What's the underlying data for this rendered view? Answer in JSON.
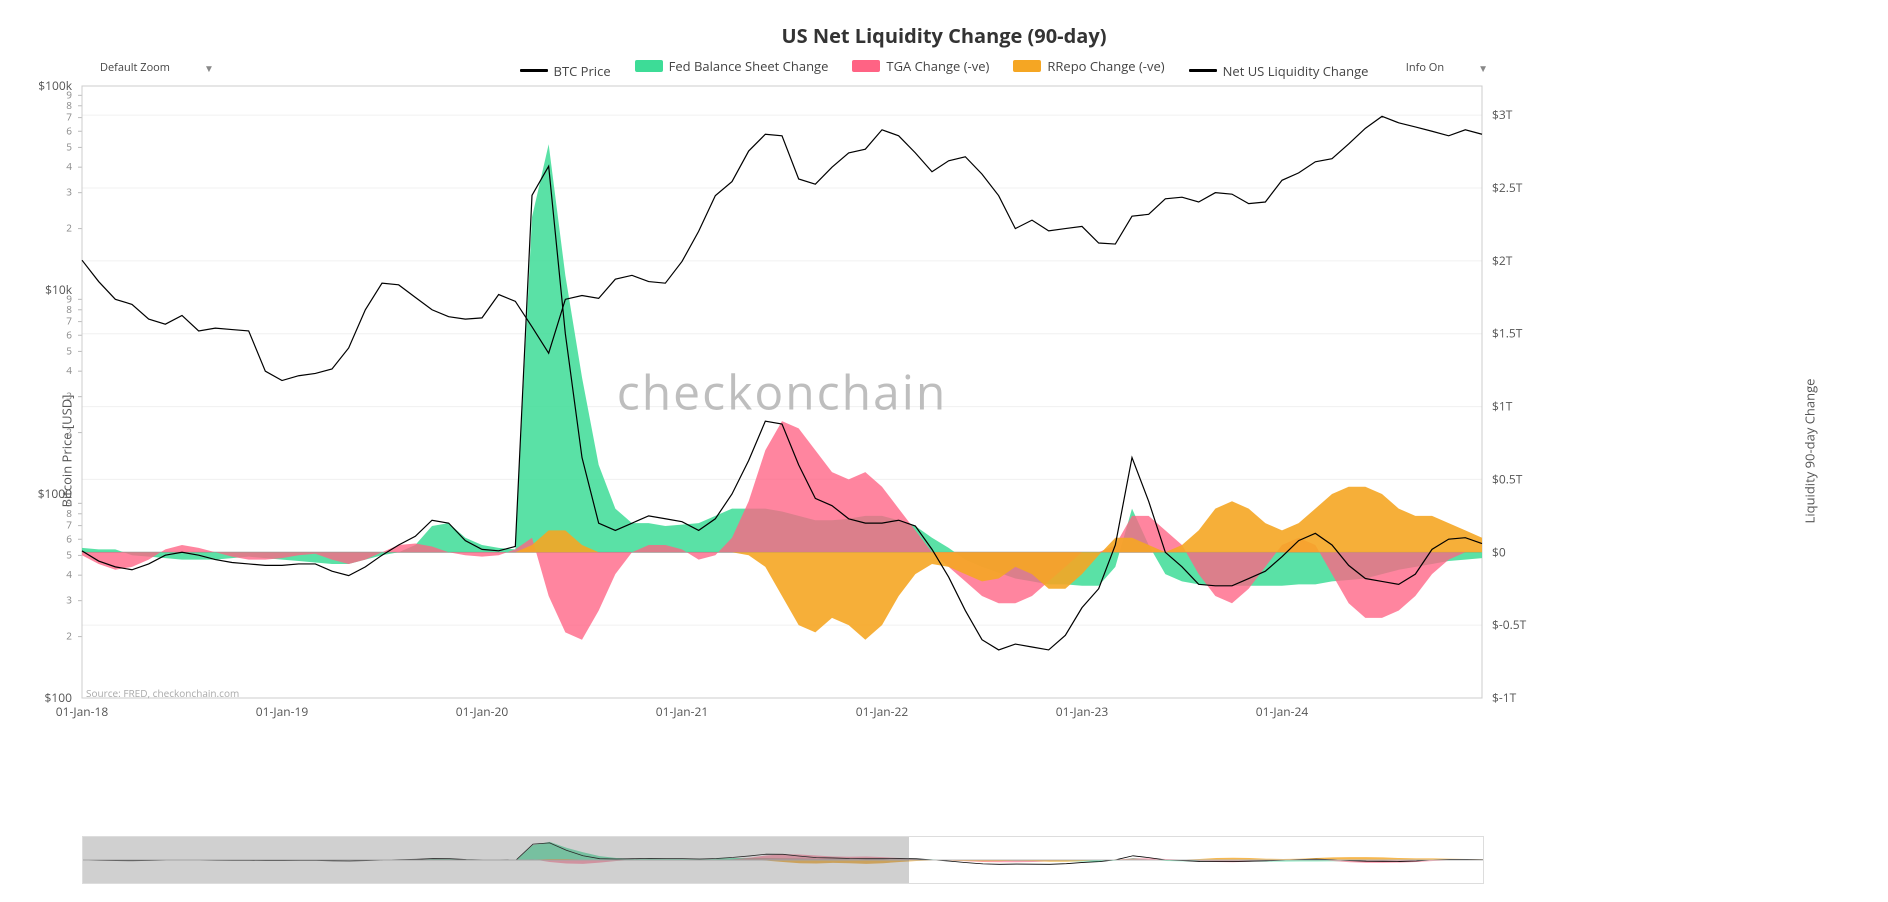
{
  "title": "US Net Liquidity Change (90-day)",
  "controls": {
    "zoom_label": "Default Zoom",
    "info_label": "Info On"
  },
  "legend": [
    {
      "label": "BTC Price",
      "color": "#000000",
      "type": "line"
    },
    {
      "label": "Fed Balance Sheet Change",
      "color": "#3ddc97",
      "type": "area"
    },
    {
      "label": "TGA Change (-ve)",
      "color": "#ff6384",
      "type": "area"
    },
    {
      "label": "RRepo Change (-ve)",
      "color": "#f5a623",
      "type": "area"
    },
    {
      "label": "Net US Liquidity Change",
      "color": "#000000",
      "type": "line"
    }
  ],
  "watermark": "checkonchain",
  "source_text": "Source: FRED, checkonchain.com",
  "chart": {
    "type": "combo-line-area",
    "background_color": "#ffffff",
    "grid_color": "#f0f0f0",
    "axis_color": "#cccccc",
    "font_size_axis": 12,
    "font_size_title": 20,
    "y_left": {
      "title": "Bitcoin Price [USD]",
      "scale": "log",
      "lim": [
        100,
        100000
      ],
      "major_ticks": [
        100,
        1000,
        10000,
        100000
      ],
      "major_labels": [
        "$100",
        "$1000",
        "$10k",
        "$100k"
      ],
      "minor_ticks": [
        200,
        300,
        400,
        500,
        600,
        700,
        800,
        900,
        2000,
        3000,
        4000,
        5000,
        6000,
        7000,
        8000,
        9000,
        20000,
        30000,
        40000,
        50000,
        60000,
        70000,
        80000,
        90000
      ],
      "minor_labels": [
        "2",
        "3",
        "4",
        "5",
        "6",
        "7",
        "8",
        "9",
        "2",
        "3",
        "4",
        "5",
        "6",
        "7",
        "8",
        "9",
        "2",
        "3",
        "4",
        "5",
        "6",
        "7",
        "8",
        "9"
      ]
    },
    "y_right": {
      "title": "Liquidity 90-day Change",
      "scale": "linear",
      "lim": [
        -1.0,
        3.2
      ],
      "ticks": [
        -1.0,
        -0.5,
        0,
        0.5,
        1.0,
        1.5,
        2.0,
        2.5,
        3.0
      ],
      "labels": [
        "$-1T",
        "$-0.5T",
        "$0",
        "$0.5T",
        "$1T",
        "$1.5T",
        "$2T",
        "$2.5T",
        "$3T"
      ]
    },
    "x": {
      "lim": [
        0,
        84
      ],
      "tick_positions": [
        0,
        12,
        24,
        36,
        48,
        60,
        72,
        84
      ],
      "tick_labels": [
        "01-Jan-18",
        "01-Jan-19",
        "01-Jan-20",
        "01-Jan-21",
        "01-Jan-22",
        "01-Jan-23",
        "01-Jan-24",
        ""
      ]
    },
    "series": {
      "btc_price": {
        "axis": "left",
        "color": "#000000",
        "line_width": 1.2,
        "y": [
          14000,
          11000,
          9000,
          8500,
          7200,
          6800,
          7500,
          6300,
          6500,
          6400,
          6300,
          4000,
          3600,
          3800,
          3900,
          4100,
          5200,
          8000,
          10800,
          10600,
          9200,
          8000,
          7400,
          7200,
          7300,
          9500,
          8800,
          6600,
          4900,
          9000,
          9400,
          9100,
          11300,
          11800,
          11000,
          10800,
          13800,
          19400,
          29000,
          34000,
          48000,
          58000,
          57000,
          35000,
          33000,
          40000,
          47000,
          49000,
          61000,
          57000,
          47000,
          38000,
          43000,
          45000,
          37000,
          29000,
          20000,
          22000,
          19500,
          20000,
          20500,
          17000,
          16800,
          23000,
          23500,
          28000,
          28500,
          27000,
          30000,
          29500,
          26500,
          27000,
          34500,
          37500,
          42500,
          44000,
          52000,
          62000,
          71000,
          66000,
          63000,
          60000,
          57000,
          61000,
          58000
        ]
      },
      "fed": {
        "axis": "right",
        "color": "#3ddc97",
        "opacity": 0.85,
        "line_width": 0,
        "y": [
          0.03,
          0.02,
          0.02,
          -0.02,
          -0.03,
          -0.04,
          -0.05,
          -0.05,
          -0.05,
          -0.04,
          -0.03,
          -0.04,
          -0.05,
          -0.06,
          -0.07,
          -0.08,
          -0.08,
          -0.05,
          -0.02,
          0.0,
          0.05,
          0.18,
          0.2,
          0.1,
          0.05,
          0.03,
          0.02,
          2.3,
          2.8,
          1.9,
          1.2,
          0.6,
          0.3,
          0.2,
          0.2,
          0.18,
          0.19,
          0.2,
          0.25,
          0.3,
          0.3,
          0.3,
          0.28,
          0.25,
          0.22,
          0.22,
          0.23,
          0.25,
          0.25,
          0.22,
          0.18,
          0.1,
          0.03,
          -0.05,
          -0.1,
          -0.14,
          -0.18,
          -0.2,
          -0.22,
          -0.22,
          -0.23,
          -0.23,
          -0.1,
          0.3,
          0.05,
          -0.15,
          -0.2,
          -0.22,
          -0.23,
          -0.23,
          -0.23,
          -0.23,
          -0.23,
          -0.22,
          -0.22,
          -0.2,
          -0.19,
          -0.18,
          -0.15,
          -0.12,
          -0.1,
          -0.08,
          -0.06,
          -0.05,
          -0.04
        ]
      },
      "tga": {
        "axis": "right",
        "color": "#ff6384",
        "opacity": 0.78,
        "line_width": 0,
        "y": [
          -0.02,
          -0.08,
          -0.12,
          -0.1,
          -0.05,
          0.02,
          0.05,
          0.03,
          0.0,
          -0.03,
          -0.05,
          -0.05,
          -0.04,
          -0.02,
          -0.01,
          -0.05,
          -0.08,
          -0.05,
          0.0,
          0.05,
          0.06,
          0.04,
          0.0,
          -0.02,
          -0.03,
          -0.02,
          0.02,
          0.1,
          -0.3,
          -0.55,
          -0.6,
          -0.4,
          -0.15,
          0.0,
          0.05,
          0.05,
          0.02,
          -0.05,
          -0.02,
          0.1,
          0.35,
          0.7,
          0.9,
          0.85,
          0.7,
          0.55,
          0.5,
          0.55,
          0.45,
          0.3,
          0.15,
          0.0,
          -0.1,
          -0.2,
          -0.3,
          -0.35,
          -0.35,
          -0.3,
          -0.2,
          -0.1,
          0.0,
          0.0,
          0.05,
          0.25,
          0.25,
          0.15,
          0.05,
          -0.15,
          -0.3,
          -0.35,
          -0.25,
          -0.1,
          0.05,
          0.1,
          0.05,
          -0.15,
          -0.35,
          -0.45,
          -0.45,
          -0.4,
          -0.3,
          -0.15,
          -0.05,
          0.0,
          0.0
        ]
      },
      "rrepo": {
        "axis": "right",
        "color": "#f5a623",
        "opacity": 0.9,
        "line_width": 0,
        "y": [
          0.0,
          0.0,
          0.0,
          0.0,
          0.0,
          0.0,
          0.0,
          0.0,
          0.0,
          0.0,
          0.0,
          0.0,
          0.0,
          0.0,
          0.0,
          0.0,
          0.0,
          0.0,
          0.0,
          0.0,
          0.0,
          0.0,
          0.0,
          0.0,
          0.0,
          0.0,
          0.0,
          0.05,
          0.15,
          0.15,
          0.05,
          0.0,
          0.0,
          0.0,
          0.0,
          0.0,
          0.0,
          0.0,
          0.0,
          0.0,
          -0.02,
          -0.1,
          -0.3,
          -0.5,
          -0.55,
          -0.45,
          -0.5,
          -0.6,
          -0.5,
          -0.3,
          -0.15,
          -0.08,
          -0.1,
          -0.15,
          -0.2,
          -0.18,
          -0.1,
          -0.15,
          -0.25,
          -0.25,
          -0.15,
          -0.02,
          0.1,
          0.1,
          0.05,
          0.0,
          0.05,
          0.15,
          0.3,
          0.35,
          0.3,
          0.2,
          0.15,
          0.2,
          0.3,
          0.4,
          0.45,
          0.45,
          0.4,
          0.3,
          0.25,
          0.25,
          0.2,
          0.15,
          0.1
        ]
      },
      "net": {
        "axis": "right",
        "color": "#000000",
        "line_width": 1.2,
        "y": [
          0.01,
          -0.06,
          -0.1,
          -0.12,
          -0.08,
          -0.02,
          0.0,
          -0.02,
          -0.05,
          -0.07,
          -0.08,
          -0.09,
          -0.09,
          -0.08,
          -0.08,
          -0.13,
          -0.16,
          -0.1,
          -0.02,
          0.05,
          0.11,
          0.22,
          0.2,
          0.08,
          0.02,
          0.01,
          0.04,
          2.45,
          2.65,
          1.5,
          0.65,
          0.2,
          0.15,
          0.2,
          0.25,
          0.23,
          0.21,
          0.15,
          0.23,
          0.4,
          0.63,
          0.9,
          0.88,
          0.6,
          0.37,
          0.32,
          0.23,
          0.2,
          0.2,
          0.22,
          0.18,
          0.02,
          -0.17,
          -0.4,
          -0.6,
          -0.67,
          -0.63,
          -0.65,
          -0.67,
          -0.57,
          -0.38,
          -0.25,
          0.05,
          0.65,
          0.35,
          0.0,
          -0.1,
          -0.22,
          -0.23,
          -0.23,
          -0.18,
          -0.13,
          -0.03,
          0.08,
          0.13,
          0.05,
          -0.09,
          -0.18,
          -0.2,
          -0.22,
          -0.15,
          0.02,
          0.09,
          0.1,
          0.06
        ]
      }
    }
  },
  "rangeslider": {
    "mask_start_frac": 0.0,
    "mask_end_frac": 0.59
  }
}
